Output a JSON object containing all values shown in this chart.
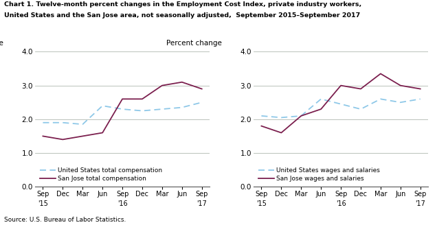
{
  "title_line1": "Chart 1. Twelve-month percent changes in the Employment Cost Index, private industry workers,",
  "title_line2": "United States and the San Jose area, not seasonally adjusted,  September 2015–September 2017",
  "ylabel": "Percent change",
  "source": "Source: U.S. Bureau of Labor Statistics.",
  "x_labels_left": [
    "Sep",
    "Dec",
    "Mar",
    "Jun",
    "Sep",
    "Dec",
    "Mar",
    "Jun",
    "Sep"
  ],
  "x_year_left": [
    "'15",
    "",
    "",
    "",
    "'16",
    "",
    "",
    "",
    "'17"
  ],
  "x_labels_right": [
    "Sep",
    "Dec",
    "Mar",
    "Jun",
    "Sep",
    "Dec",
    "Mar",
    "Jun",
    "Sep"
  ],
  "x_year_right": [
    "'15",
    "",
    "",
    "",
    "'16",
    "",
    "",
    "",
    "'17"
  ],
  "ylim": [
    0.0,
    4.0
  ],
  "yticks": [
    0.0,
    1.0,
    2.0,
    3.0,
    4.0
  ],
  "left_chart": {
    "us_vals": [
      1.9,
      1.9,
      1.85,
      2.4,
      2.3,
      2.25,
      2.3,
      2.35,
      2.5
    ],
    "sj_vals": [
      1.5,
      1.4,
      1.5,
      1.6,
      2.6,
      2.6,
      3.0,
      3.1,
      2.9
    ],
    "legend1": "United States total compensation",
    "legend2": "San Jose total compensation"
  },
  "right_chart": {
    "us_vals": [
      2.1,
      2.05,
      2.1,
      2.6,
      2.45,
      2.3,
      2.6,
      2.5,
      2.6
    ],
    "sj_vals": [
      1.8,
      1.6,
      2.1,
      2.3,
      3.0,
      2.9,
      3.35,
      3.0,
      2.9
    ],
    "legend1": "United States wages and salaries",
    "legend2": "San Jose wages and salaries"
  },
  "us_color": "#8EC8E8",
  "sj_color": "#7B1F4E",
  "background_color": "#ffffff",
  "grid_color": "#b0b8b0"
}
